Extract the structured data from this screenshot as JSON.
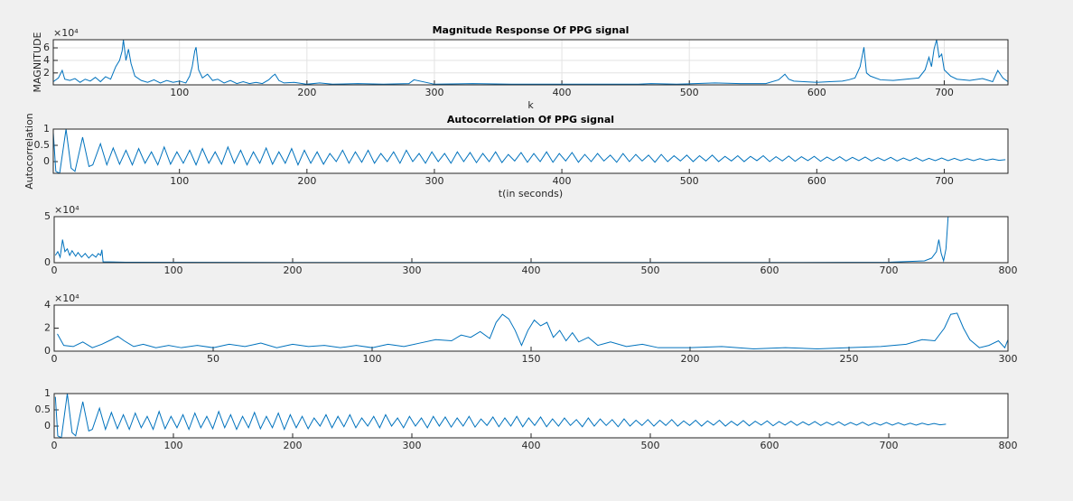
{
  "chart_data": [
    {
      "type": "line",
      "title": "Magnitude Response Of PPG signal",
      "xlabel": "k",
      "ylabel": "MAGNITUDE",
      "y_exponent": "×10⁴",
      "color": "#0072bd",
      "grid": true,
      "xlim": [
        1,
        750
      ],
      "ylim": [
        0.1,
        7.3
      ],
      "xticks": [
        100,
        200,
        300,
        400,
        500,
        600,
        700
      ],
      "yticks": [
        2,
        4,
        6
      ],
      "x": [
        1,
        5,
        8,
        10,
        14,
        18,
        22,
        26,
        30,
        34,
        38,
        42,
        46,
        50,
        53,
        55,
        56,
        58,
        60,
        62,
        65,
        70,
        75,
        80,
        85,
        90,
        95,
        100,
        105,
        108,
        110,
        112,
        113,
        115,
        118,
        122,
        126,
        130,
        135,
        140,
        145,
        150,
        155,
        160,
        165,
        170,
        173,
        175,
        178,
        182,
        190,
        200,
        210,
        220,
        240,
        260,
        280,
        284,
        300,
        330,
        360,
        400,
        430,
        460,
        470,
        490,
        520,
        540,
        560,
        570,
        575,
        578,
        582,
        590,
        600,
        610,
        620,
        625,
        630,
        634,
        637,
        639,
        642,
        650,
        660,
        670,
        680,
        685,
        688,
        690,
        692,
        694,
        696,
        698,
        700,
        705,
        710,
        720,
        730,
        738,
        742,
        746,
        750
      ],
      "values": [
        0.6,
        1.2,
        2.4,
        1.0,
        0.8,
        1.1,
        0.5,
        1.0,
        0.7,
        1.3,
        0.6,
        1.4,
        1.0,
        3.0,
        4.0,
        5.5,
        7.3,
        4.0,
        5.8,
        3.5,
        1.5,
        0.8,
        0.5,
        0.9,
        0.4,
        0.8,
        0.5,
        0.7,
        0.4,
        1.5,
        3.0,
        5.5,
        6.1,
        2.5,
        1.2,
        1.8,
        0.8,
        1.0,
        0.4,
        0.8,
        0.3,
        0.6,
        0.3,
        0.5,
        0.3,
        0.9,
        1.5,
        1.8,
        0.8,
        0.4,
        0.5,
        0.2,
        0.4,
        0.2,
        0.3,
        0.2,
        0.3,
        0.9,
        0.2,
        0.3,
        0.2,
        0.2,
        0.2,
        0.2,
        0.3,
        0.2,
        0.4,
        0.3,
        0.3,
        0.9,
        1.8,
        1.0,
        0.7,
        0.6,
        0.5,
        0.6,
        0.7,
        0.9,
        1.2,
        3.0,
        6.1,
        2.0,
        1.5,
        0.9,
        0.8,
        1.0,
        1.2,
        2.5,
        4.5,
        3.0,
        5.8,
        7.3,
        4.5,
        5.0,
        2.5,
        1.5,
        1.0,
        0.8,
        1.1,
        0.6,
        2.4,
        1.2,
        0.6
      ]
    },
    {
      "type": "line",
      "title": "Autocorrelation Of PPG signal",
      "xlabel": "t(in seconds)",
      "ylabel": "Autocorrelation",
      "color": "#0072bd",
      "grid": false,
      "xlim": [
        1,
        750
      ],
      "ylim": [
        -0.36,
        1
      ],
      "xticks": [
        100,
        200,
        300,
        400,
        500,
        600,
        700
      ],
      "yticks": [
        0,
        0.5,
        1
      ],
      "x": [
        1,
        3,
        6,
        11,
        15,
        18,
        24,
        29,
        32,
        38,
        43,
        48,
        53,
        58,
        63,
        68,
        73,
        78,
        83,
        88,
        93,
        98,
        103,
        108,
        113,
        118,
        123,
        128,
        133,
        138,
        143,
        148,
        153,
        158,
        163,
        168,
        173,
        178,
        183,
        188,
        193,
        198,
        203,
        208,
        213,
        218,
        223,
        228,
        233,
        238,
        243,
        248,
        253,
        258,
        263,
        268,
        273,
        278,
        283,
        288,
        293,
        298,
        303,
        308,
        313,
        318,
        323,
        328,
        333,
        338,
        343,
        348,
        353,
        358,
        363,
        368,
        373,
        378,
        383,
        388,
        393,
        398,
        403,
        408,
        413,
        418,
        423,
        428,
        433,
        438,
        443,
        448,
        453,
        458,
        463,
        468,
        473,
        478,
        483,
        488,
        493,
        498,
        503,
        508,
        513,
        518,
        523,
        528,
        533,
        538,
        543,
        548,
        553,
        558,
        563,
        568,
        573,
        578,
        583,
        588,
        593,
        598,
        603,
        608,
        613,
        618,
        623,
        628,
        633,
        638,
        643,
        648,
        653,
        658,
        663,
        668,
        673,
        678,
        683,
        688,
        693,
        698,
        703,
        708,
        713,
        718,
        723,
        728,
        733,
        738,
        743,
        748
      ],
      "values": [
        0.9,
        -0.3,
        -0.36,
        1.0,
        -0.2,
        -0.3,
        0.75,
        -0.15,
        -0.1,
        0.55,
        -0.1,
        0.42,
        -0.08,
        0.35,
        -0.1,
        0.4,
        -0.05,
        0.3,
        -0.1,
        0.45,
        -0.08,
        0.3,
        -0.05,
        0.35,
        -0.1,
        0.4,
        -0.05,
        0.3,
        -0.08,
        0.45,
        -0.05,
        0.35,
        -0.1,
        0.3,
        -0.05,
        0.42,
        -0.08,
        0.3,
        -0.05,
        0.4,
        -0.1,
        0.35,
        -0.05,
        0.3,
        -0.08,
        0.25,
        0,
        0.35,
        -0.05,
        0.3,
        -0.02,
        0.35,
        -0.05,
        0.25,
        0,
        0.3,
        -0.05,
        0.35,
        0,
        0.25,
        -0.05,
        0.3,
        0,
        0.25,
        -0.05,
        0.3,
        0,
        0.28,
        -0.03,
        0.25,
        0,
        0.3,
        -0.03,
        0.22,
        0.02,
        0.28,
        -0.02,
        0.25,
        0,
        0.3,
        -0.02,
        0.25,
        0.02,
        0.28,
        -0.02,
        0.22,
        0,
        0.25,
        0.02,
        0.2,
        -0.02,
        0.25,
        0,
        0.22,
        0.02,
        0.2,
        -0.02,
        0.22,
        0,
        0.18,
        0.02,
        0.2,
        0,
        0.18,
        0.02,
        0.2,
        0,
        0.16,
        0.02,
        0.18,
        0,
        0.16,
        0.03,
        0.18,
        0,
        0.15,
        0.02,
        0.17,
        0.01,
        0.15,
        0.03,
        0.16,
        0.01,
        0.14,
        0.03,
        0.15,
        0.02,
        0.13,
        0.03,
        0.14,
        0.02,
        0.12,
        0.03,
        0.13,
        0.02,
        0.11,
        0.03,
        0.12,
        0.02,
        0.1,
        0.03,
        0.11,
        0.03,
        0.1,
        0.03,
        0.09,
        0.03,
        0.09,
        0.04,
        0.08,
        0.04,
        0.06
      ]
    },
    {
      "type": "line",
      "y_exponent": "×10⁴",
      "color": "#0072bd",
      "grid": false,
      "xlim": [
        0,
        800
      ],
      "ylim": [
        0,
        5
      ],
      "xticks": [
        0,
        100,
        200,
        300,
        400,
        500,
        600,
        700,
        800
      ],
      "yticks": [
        0,
        5
      ],
      "x": [
        1,
        3,
        5,
        7,
        9,
        11,
        13,
        15,
        18,
        20,
        23,
        26,
        29,
        32,
        35,
        37,
        39,
        40,
        41,
        60,
        200,
        400,
        600,
        700,
        730,
        736,
        740,
        742,
        744,
        746,
        748,
        751
      ],
      "values": [
        0.8,
        1.2,
        0.6,
        2.5,
        1.2,
        1.5,
        0.8,
        1.3,
        0.7,
        1.1,
        0.6,
        1.0,
        0.5,
        0.9,
        0.6,
        1.0,
        0.8,
        1.4,
        0.1,
        0.05,
        0.02,
        0.02,
        0.02,
        0.05,
        0.2,
        0.5,
        1.2,
        2.5,
        1.0,
        0.2,
        1.5,
        7.3
      ]
    },
    {
      "type": "line",
      "y_exponent": "×10⁴",
      "color": "#0072bd",
      "grid": false,
      "xlim": [
        0,
        300
      ],
      "ylim": [
        0,
        4
      ],
      "xticks": [
        0,
        50,
        100,
        150,
        200,
        250,
        300
      ],
      "yticks": [
        0,
        2,
        4
      ],
      "x": [
        1,
        3,
        6,
        9,
        12,
        15,
        18,
        20,
        22,
        25,
        28,
        32,
        36,
        40,
        45,
        50,
        55,
        60,
        65,
        70,
        75,
        80,
        85,
        90,
        95,
        100,
        105,
        110,
        115,
        120,
        125,
        128,
        131,
        134,
        137,
        139,
        141,
        143,
        145,
        147,
        149,
        151,
        153,
        155,
        157,
        159,
        161,
        163,
        165,
        168,
        171,
        175,
        180,
        185,
        190,
        200,
        210,
        220,
        230,
        240,
        250,
        260,
        268,
        273,
        277,
        280,
        282,
        284,
        286,
        288,
        291,
        294,
        297,
        299,
        300
      ],
      "values": [
        1.5,
        0.5,
        0.4,
        0.8,
        0.3,
        0.6,
        1.0,
        1.3,
        0.9,
        0.4,
        0.6,
        0.3,
        0.5,
        0.3,
        0.5,
        0.3,
        0.6,
        0.4,
        0.7,
        0.3,
        0.6,
        0.4,
        0.5,
        0.3,
        0.5,
        0.3,
        0.6,
        0.4,
        0.7,
        1.0,
        0.9,
        1.4,
        1.2,
        1.7,
        1.1,
        2.5,
        3.2,
        2.8,
        1.8,
        0.5,
        1.8,
        2.7,
        2.2,
        2.5,
        1.2,
        1.8,
        0.9,
        1.6,
        0.8,
        1.2,
        0.5,
        0.8,
        0.4,
        0.6,
        0.3,
        0.3,
        0.4,
        0.2,
        0.3,
        0.2,
        0.3,
        0.4,
        0.6,
        1.0,
        0.9,
        2.0,
        3.2,
        3.3,
        2.0,
        1.0,
        0.3,
        0.5,
        0.9,
        0.3,
        1.0
      ]
    },
    {
      "type": "line",
      "color": "#0072bd",
      "grid": false,
      "xlim": [
        0,
        800
      ],
      "ylim": [
        -0.36,
        1
      ],
      "xticks": [
        0,
        100,
        200,
        300,
        400,
        500,
        600,
        700,
        800
      ],
      "yticks": [
        0,
        0.5,
        1
      ],
      "x": [
        1,
        3,
        6,
        11,
        15,
        18,
        24,
        29,
        32,
        38,
        43,
        48,
        53,
        58,
        63,
        68,
        73,
        78,
        83,
        88,
        93,
        98,
        103,
        108,
        113,
        118,
        123,
        128,
        133,
        138,
        143,
        148,
        153,
        158,
        163,
        168,
        173,
        178,
        183,
        188,
        193,
        198,
        203,
        208,
        213,
        218,
        223,
        228,
        233,
        238,
        243,
        248,
        253,
        258,
        263,
        268,
        273,
        278,
        283,
        288,
        293,
        298,
        303,
        308,
        313,
        318,
        323,
        328,
        333,
        338,
        343,
        348,
        353,
        358,
        363,
        368,
        373,
        378,
        383,
        388,
        393,
        398,
        403,
        408,
        413,
        418,
        423,
        428,
        433,
        438,
        443,
        448,
        453,
        458,
        463,
        468,
        473,
        478,
        483,
        488,
        493,
        498,
        503,
        508,
        513,
        518,
        523,
        528,
        533,
        538,
        543,
        548,
        553,
        558,
        563,
        568,
        573,
        578,
        583,
        588,
        593,
        598,
        603,
        608,
        613,
        618,
        623,
        628,
        633,
        638,
        643,
        648,
        653,
        658,
        663,
        668,
        673,
        678,
        683,
        688,
        693,
        698,
        703,
        708,
        713,
        718,
        723,
        728,
        733,
        738,
        743,
        748
      ],
      "values": [
        0.9,
        -0.3,
        -0.36,
        1.0,
        -0.2,
        -0.3,
        0.75,
        -0.15,
        -0.1,
        0.55,
        -0.1,
        0.42,
        -0.08,
        0.35,
        -0.1,
        0.4,
        -0.05,
        0.3,
        -0.1,
        0.45,
        -0.08,
        0.3,
        -0.05,
        0.35,
        -0.1,
        0.4,
        -0.05,
        0.3,
        -0.08,
        0.45,
        -0.05,
        0.35,
        -0.1,
        0.3,
        -0.05,
        0.42,
        -0.08,
        0.3,
        -0.05,
        0.4,
        -0.1,
        0.35,
        -0.05,
        0.3,
        -0.08,
        0.25,
        0,
        0.35,
        -0.05,
        0.3,
        -0.02,
        0.35,
        -0.05,
        0.25,
        0,
        0.3,
        -0.05,
        0.35,
        0,
        0.25,
        -0.05,
        0.3,
        0,
        0.25,
        -0.05,
        0.3,
        0,
        0.28,
        -0.03,
        0.25,
        0,
        0.3,
        -0.03,
        0.22,
        0.02,
        0.28,
        -0.02,
        0.25,
        0,
        0.3,
        -0.02,
        0.25,
        0.02,
        0.28,
        -0.02,
        0.22,
        0,
        0.25,
        0.02,
        0.2,
        -0.02,
        0.25,
        0,
        0.22,
        0.02,
        0.2,
        -0.02,
        0.22,
        0,
        0.18,
        0.02,
        0.2,
        0,
        0.18,
        0.02,
        0.2,
        0,
        0.16,
        0.02,
        0.18,
        0,
        0.16,
        0.03,
        0.18,
        0,
        0.15,
        0.02,
        0.17,
        0.01,
        0.15,
        0.03,
        0.16,
        0.01,
        0.14,
        0.03,
        0.15,
        0.02,
        0.13,
        0.03,
        0.14,
        0.02,
        0.12,
        0.03,
        0.13,
        0.02,
        0.11,
        0.03,
        0.12,
        0.02,
        0.1,
        0.03,
        0.11,
        0.03,
        0.1,
        0.03,
        0.09,
        0.03,
        0.09,
        0.04,
        0.08,
        0.04,
        0.06
      ]
    }
  ]
}
